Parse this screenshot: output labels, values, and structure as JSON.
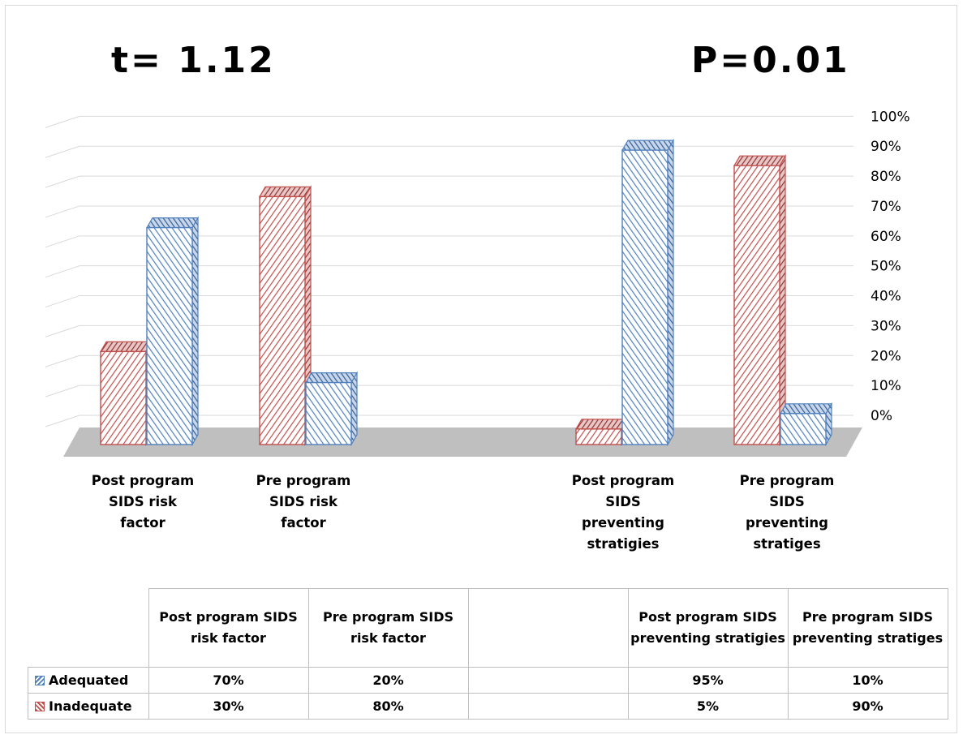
{
  "stats": {
    "t": "t= 1.12",
    "p": "P=0.01"
  },
  "chart_data": {
    "type": "bar",
    "categories": [
      "Post program SIDS risk factor",
      "Pre program SIDS risk factor",
      "",
      "Post program SIDS preventing stratigies",
      "Pre program SIDS preventing strategies"
    ],
    "series": [
      {
        "name": "Adequated",
        "values": [
          70,
          20,
          null,
          95,
          10
        ]
      },
      {
        "name": "Inadequate",
        "values": [
          30,
          80,
          null,
          5,
          90
        ]
      }
    ],
    "ylim": [
      0,
      100
    ],
    "yticks": [
      "0%",
      "10%",
      "20%",
      "30%",
      "40%",
      "50%",
      "60%",
      "70%",
      "80%",
      "90%",
      "100%"
    ],
    "legend_placement": "data-table",
    "colors": {
      "Adequated": "#4f81bd",
      "Inadequate": "#c0504d"
    }
  },
  "axis_labels": [
    "Post program\nSIDS risk\nfactor",
    "Pre program\nSIDS risk\nfactor",
    "",
    "Post program\nSIDS\npreventing\nstratigies",
    "Pre program\nSIDS\npreventing\nstratiges"
  ],
  "table": {
    "headers": [
      "Post program  SIDS risk factor",
      "Pre program  SIDS risk factor",
      "",
      "Post program SIDS preventing stratigies",
      "Pre program SIDS preventing stratiges"
    ],
    "rows": [
      {
        "label": "Adequated",
        "cells": [
          "70%",
          "20%",
          "",
          "95%",
          "10%"
        ]
      },
      {
        "label": "Inadequate",
        "cells": [
          "30%",
          "80%",
          "",
          "5%",
          "90%"
        ]
      }
    ]
  }
}
